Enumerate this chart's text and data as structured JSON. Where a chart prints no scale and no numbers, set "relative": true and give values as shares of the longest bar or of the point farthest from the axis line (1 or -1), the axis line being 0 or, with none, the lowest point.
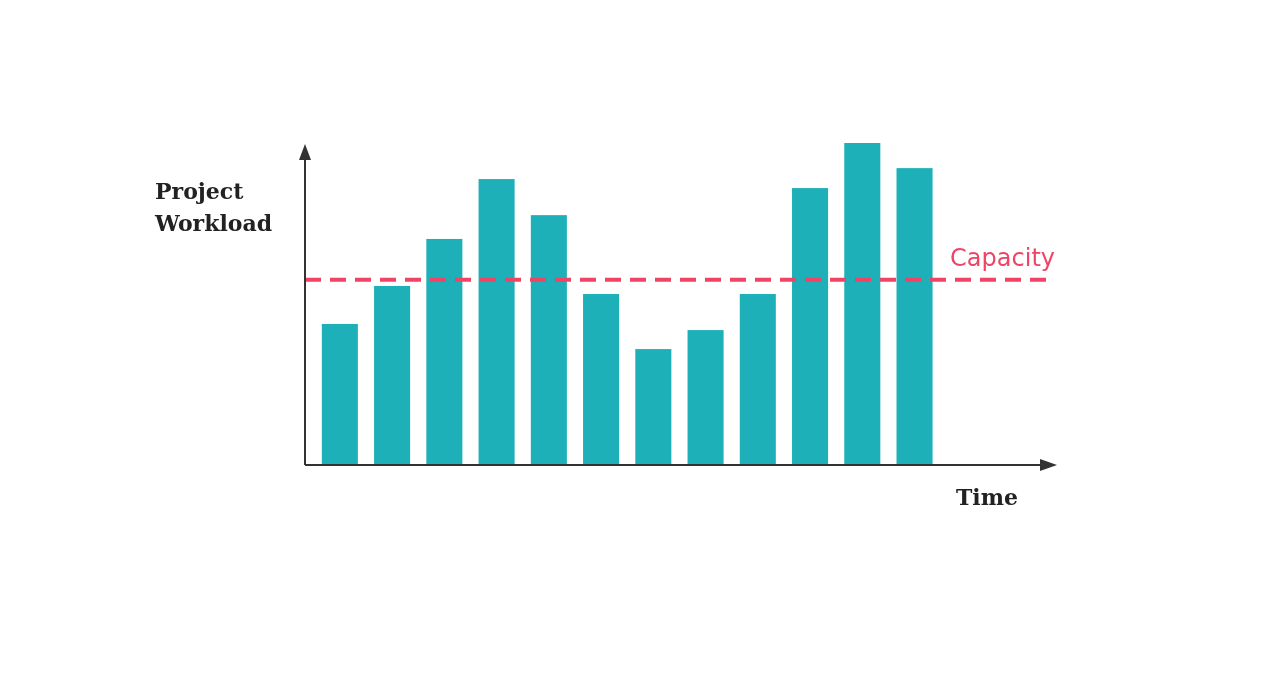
{
  "chart_data": {
    "type": "bar",
    "relative": true,
    "xlabel": "Time",
    "ylabel": "Project Workload",
    "categories": [
      null,
      null,
      null,
      null,
      null,
      null,
      null,
      null,
      null,
      null,
      null,
      null
    ],
    "values": [
      0.438,
      0.556,
      0.702,
      0.888,
      0.776,
      0.531,
      0.36,
      0.419,
      0.531,
      0.86,
      1,
      0.922
    ],
    "color": "#1eb0b8",
    "ref_lines": [
      {
        "axis": "y",
        "value": 0.575,
        "label": "Capacity",
        "color": "#ee4466",
        "line_style": "dashed"
      }
    ],
    "legend": false
  }
}
